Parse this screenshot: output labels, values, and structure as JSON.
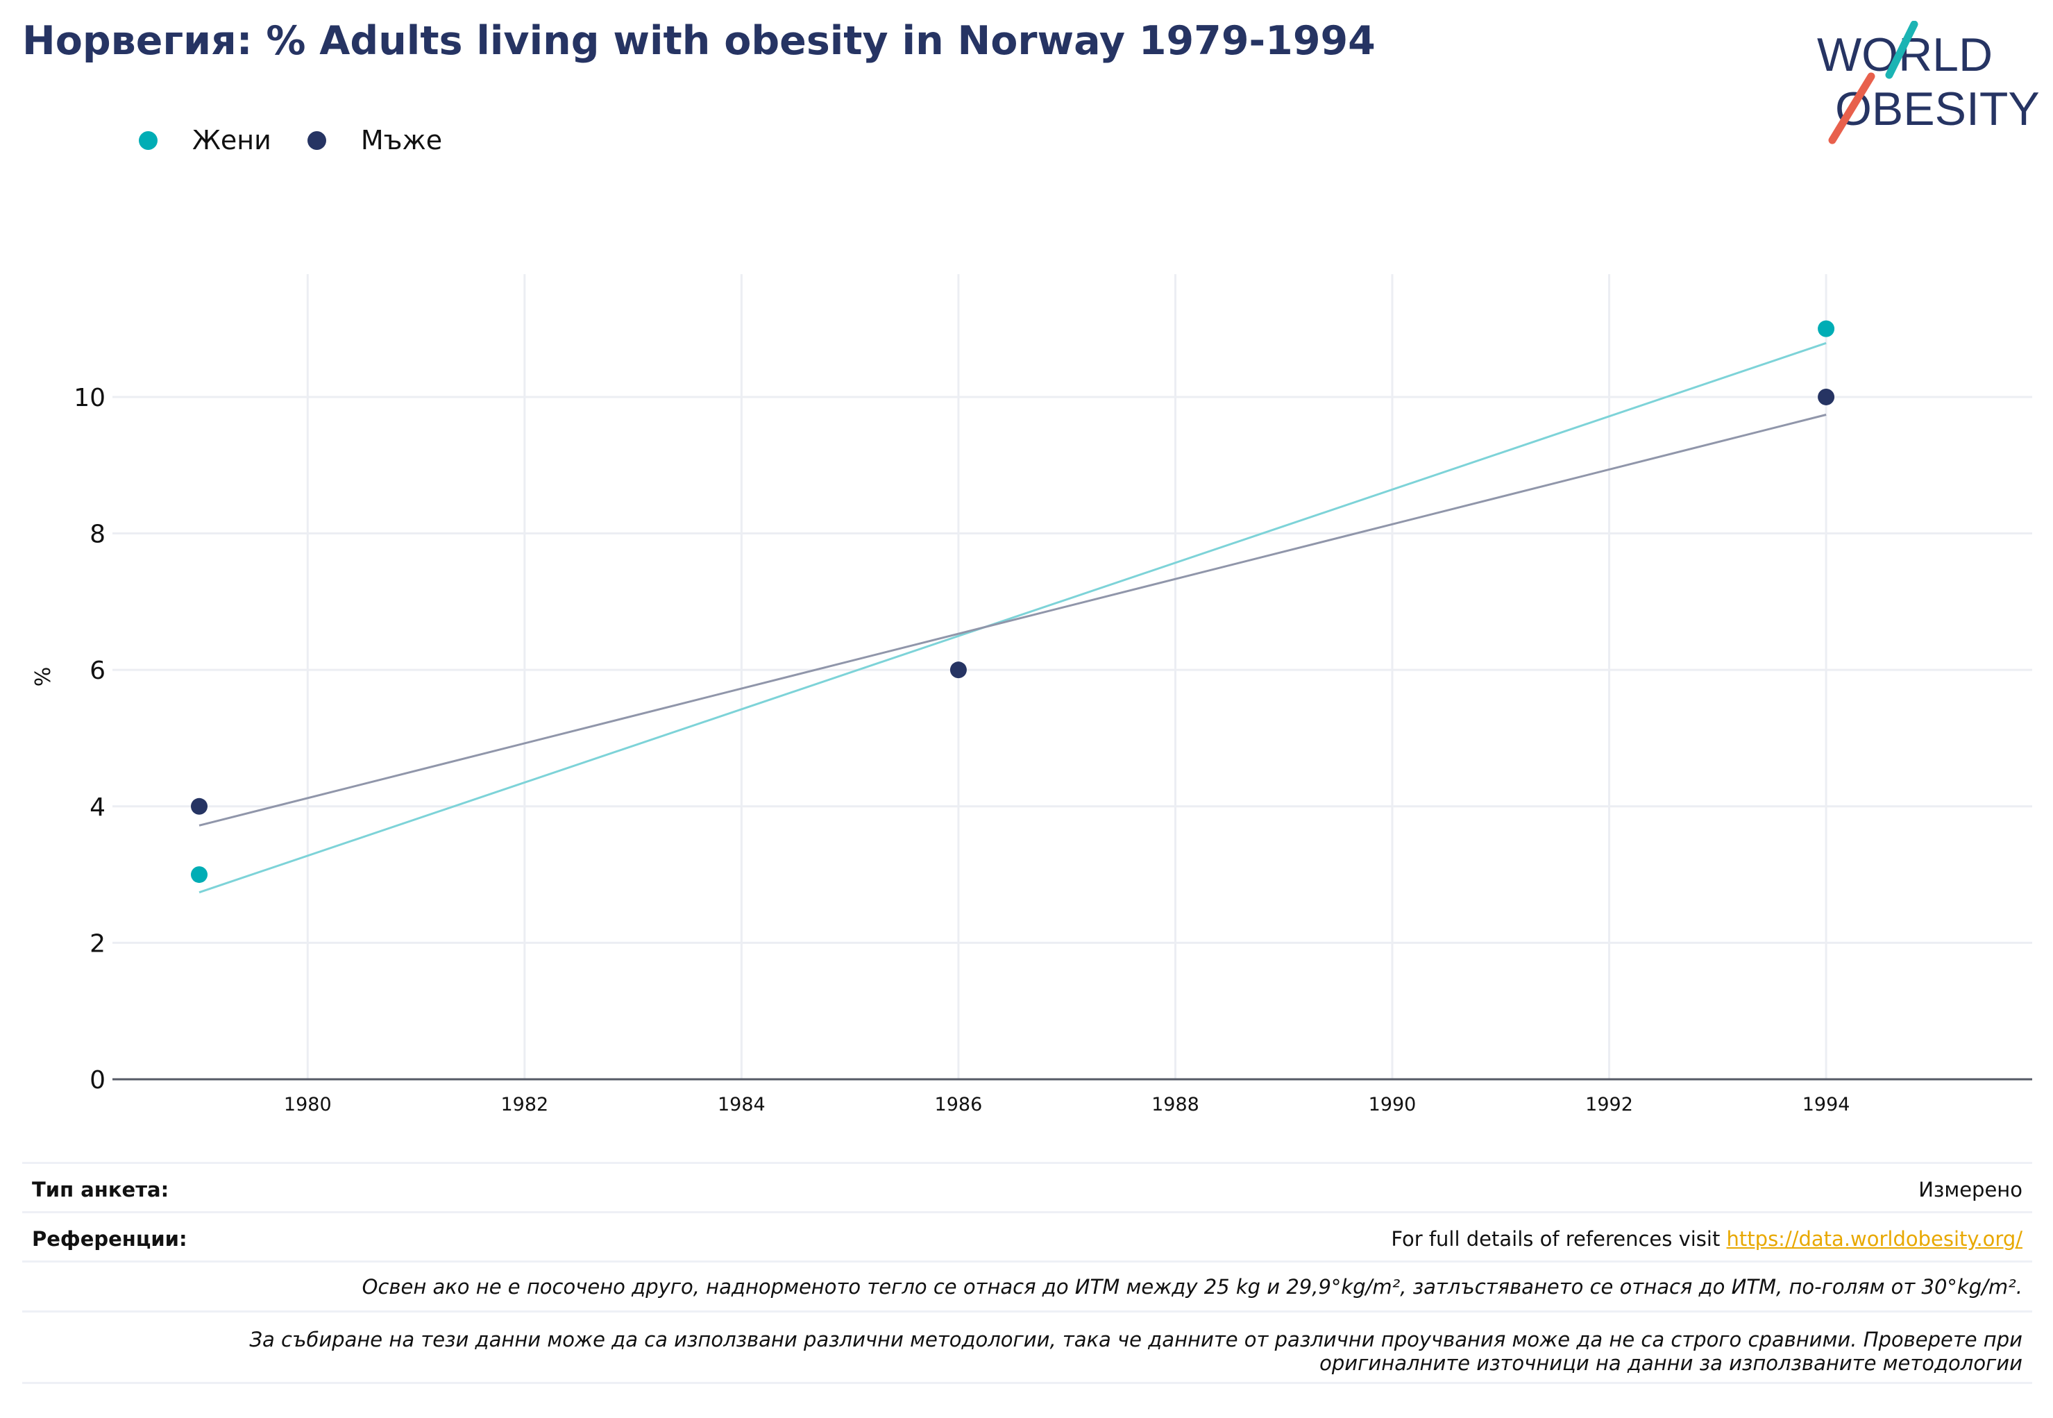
{
  "title": "Норвегия: % Adults living with obesity in Norway 1979-1994",
  "logo": {
    "line1": "WORLD",
    "line2": "OBESITY"
  },
  "colors": {
    "women": "#00adb5",
    "men": "#263463",
    "women_trend": "#7dd3d8",
    "men_trend": "#9096aa",
    "link": "#e8a800",
    "title": "#263463"
  },
  "legend": [
    {
      "name": "Жени",
      "color": "#00adb5"
    },
    {
      "name": "Мъже",
      "color": "#263463"
    }
  ],
  "chart_data": {
    "type": "scatter",
    "ylabel": "%",
    "xlim": [
      1978.2,
      1995.9
    ],
    "ylim": [
      0,
      11.8
    ],
    "yticks": [
      0,
      2,
      4,
      6,
      8,
      10
    ],
    "xticks": [
      1980,
      1982,
      1984,
      1986,
      1988,
      1990,
      1992,
      1994
    ],
    "grid": true,
    "legend_position": "top-left",
    "series": [
      {
        "name": "Жени",
        "color": "#00adb5",
        "trend_color": "#7dd3d8",
        "points": [
          {
            "x": 1979,
            "y": 3
          },
          {
            "x": 1994,
            "y": 11
          }
        ],
        "trend": [
          {
            "x": 1979,
            "y": 2.74
          },
          {
            "x": 1994,
            "y": 10.79
          }
        ]
      },
      {
        "name": "Мъже",
        "color": "#263463",
        "trend_color": "#9096aa",
        "points": [
          {
            "x": 1979,
            "y": 4
          },
          {
            "x": 1986,
            "y": 6
          },
          {
            "x": 1994,
            "y": 10
          }
        ],
        "trend": [
          {
            "x": 1979,
            "y": 3.72
          },
          {
            "x": 1994,
            "y": 9.74
          }
        ]
      }
    ]
  },
  "footer": {
    "survey_label": "Тип анкета:",
    "survey_value": "Измерено",
    "references_label": "Референции:",
    "references_text": "For full details of references visit ",
    "references_link": "https://data.worldobesity.org/",
    "note1": "Освен ако не е посочено друго, наднорменото тегло се отнася до ИТМ между 25 kg и 29,9°kg/m², затлъстяването се отнася до ИТМ, по-голям от 30°kg/m².",
    "note2_line1": "За събиране на тези данни може да са използвани различни методологии, така че данните от различни проучвания може да не са строго сравними. Проверете при",
    "note2_line2": "оригиналните източници на данни за използваните методологии"
  }
}
